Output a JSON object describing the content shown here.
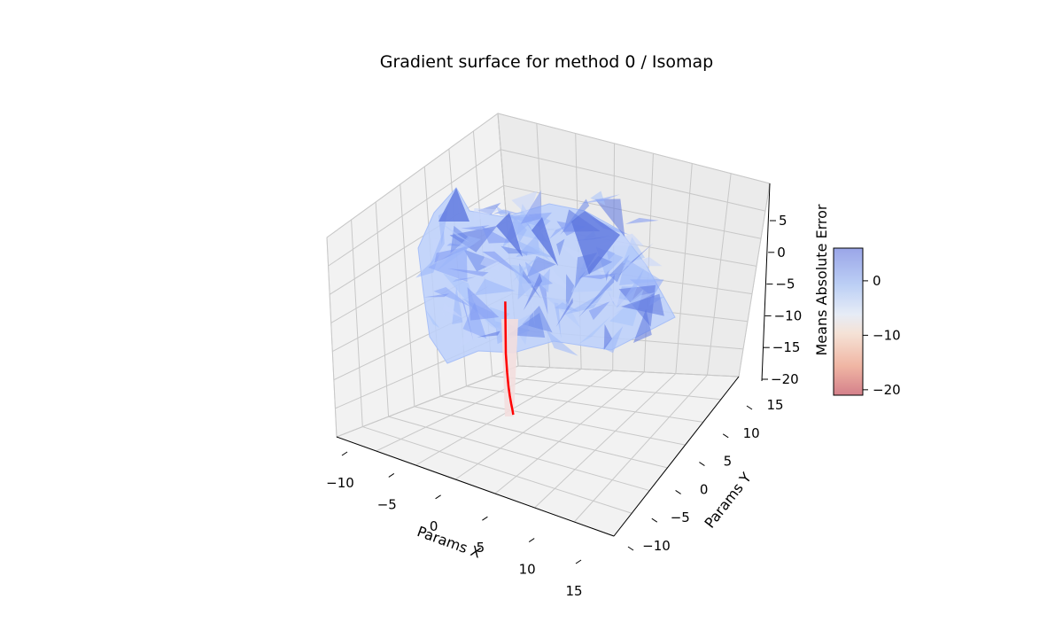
{
  "chart_data": {
    "type": "surface3d",
    "title": "Gradient surface for method 0 / Isomap",
    "xlabel": "Params X",
    "ylabel": "Params Y",
    "zlabel": "",
    "colorbar_label": "Means Absolute Error",
    "x_ticks": [
      "−10",
      "−5",
      "0",
      "5",
      "10",
      "15"
    ],
    "y_ticks": [
      "−10",
      "−5",
      "0",
      "5",
      "10",
      "15"
    ],
    "z_ticks": [
      "−20",
      "−15",
      "−10",
      "−5",
      "0",
      "5"
    ],
    "colorbar_ticks": [
      "−20",
      "−10",
      "0"
    ],
    "xlim": [
      -11,
      17
    ],
    "ylim": [
      -12,
      18
    ],
    "zlim": [
      -22,
      9
    ],
    "colorbar_range": [
      -21,
      6
    ],
    "colormap": "coolwarm",
    "surface_color": "#7b9cf5",
    "path_color": "#ff0000",
    "descent_path": {
      "x": [
        0.4,
        0.4,
        0.3,
        0.2,
        0.1,
        0.0,
        -0.1,
        0.0,
        0.1
      ],
      "y": [
        0.5,
        0.6,
        0.7,
        0.8,
        0.9,
        1.0,
        1.1,
        1.2,
        1.3
      ],
      "z": [
        -21.0,
        -20.5,
        -19.8,
        -19.0,
        -18.0,
        -16.5,
        -14.5,
        -12.0,
        -9.0
      ]
    },
    "surface_peaks_z": [
      8.0,
      7.0,
      6.5,
      5.0,
      3.5,
      2.0,
      0.5,
      -1.0,
      -3.0,
      -5.5
    ]
  }
}
